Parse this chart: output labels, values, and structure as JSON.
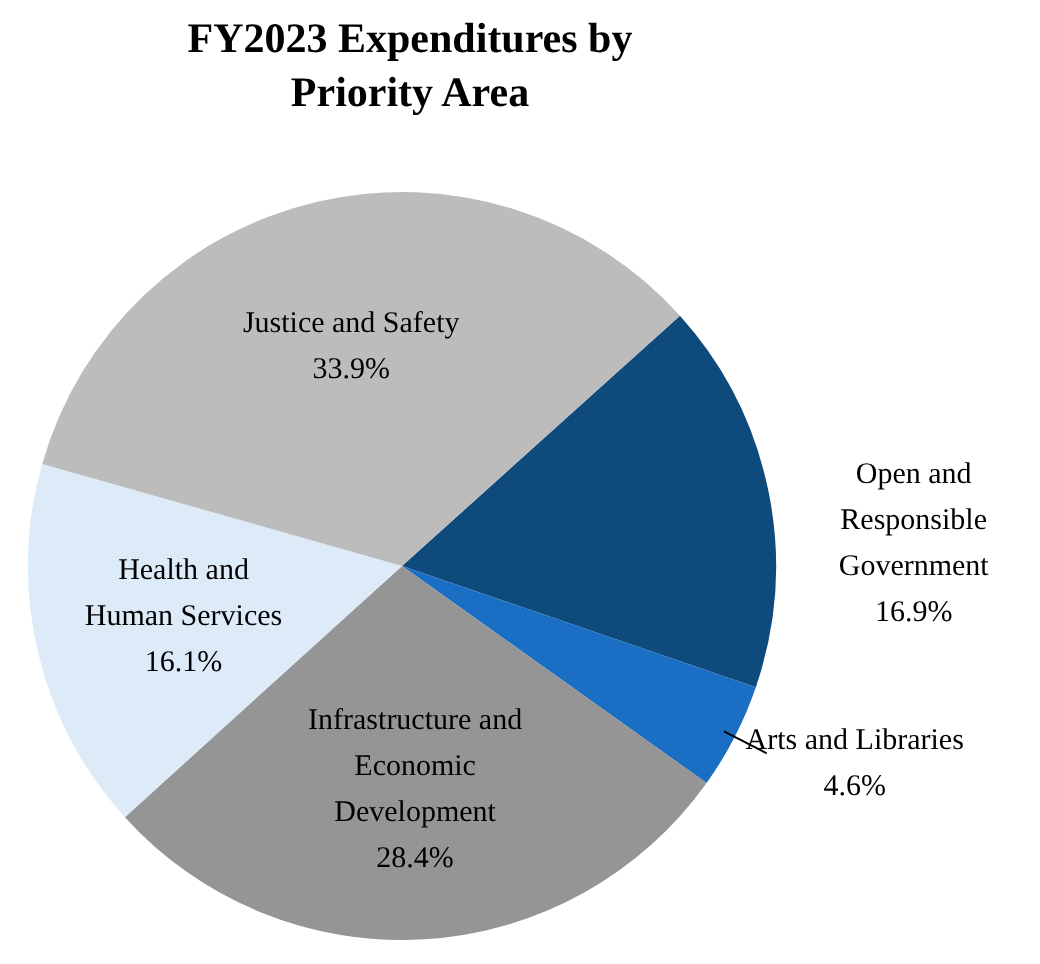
{
  "chart_data": {
    "type": "pie",
    "title": "FY2023 Expenditures by Priority Area",
    "categories": [
      "Open and Responsible Government",
      "Arts and Libraries",
      "Infrastructure and Economic Development",
      "Health and Human Services",
      "Justice and Safety"
    ],
    "values": [
      16.9,
      4.6,
      28.4,
      16.1,
      33.9
    ],
    "value_labels": [
      "16.9%",
      "4.6%",
      "28.4%",
      "16.1%",
      "33.9%"
    ],
    "colors": [
      "#0f4a7c",
      "#1a6fc4",
      "#959595",
      "#ddebf8",
      "#bcbcbc"
    ],
    "legend": false
  }
}
